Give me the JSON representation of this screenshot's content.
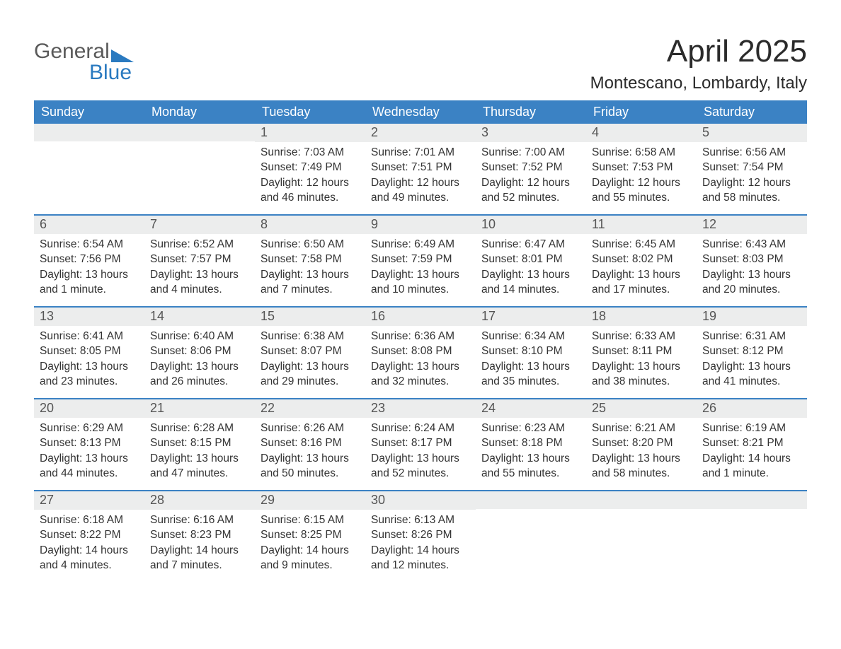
{
  "logo": {
    "line1": "General",
    "line2": "Blue"
  },
  "title": "April 2025",
  "location": "Montescano, Lombardy, Italy",
  "colors": {
    "header_bg": "#3b82c4",
    "header_text": "#ffffff",
    "daynum_bg": "#eceded",
    "row_divider": "#3b82c4",
    "logo_blue": "#2a7ac0",
    "body_text": "#333333"
  },
  "days_of_week": [
    "Sunday",
    "Monday",
    "Tuesday",
    "Wednesday",
    "Thursday",
    "Friday",
    "Saturday"
  ],
  "weeks": [
    [
      {
        "day": "",
        "sunrise": "",
        "sunset": "",
        "daylight": ""
      },
      {
        "day": "",
        "sunrise": "",
        "sunset": "",
        "daylight": ""
      },
      {
        "day": "1",
        "sunrise": "Sunrise: 7:03 AM",
        "sunset": "Sunset: 7:49 PM",
        "daylight": "Daylight: 12 hours and 46 minutes."
      },
      {
        "day": "2",
        "sunrise": "Sunrise: 7:01 AM",
        "sunset": "Sunset: 7:51 PM",
        "daylight": "Daylight: 12 hours and 49 minutes."
      },
      {
        "day": "3",
        "sunrise": "Sunrise: 7:00 AM",
        "sunset": "Sunset: 7:52 PM",
        "daylight": "Daylight: 12 hours and 52 minutes."
      },
      {
        "day": "4",
        "sunrise": "Sunrise: 6:58 AM",
        "sunset": "Sunset: 7:53 PM",
        "daylight": "Daylight: 12 hours and 55 minutes."
      },
      {
        "day": "5",
        "sunrise": "Sunrise: 6:56 AM",
        "sunset": "Sunset: 7:54 PM",
        "daylight": "Daylight: 12 hours and 58 minutes."
      }
    ],
    [
      {
        "day": "6",
        "sunrise": "Sunrise: 6:54 AM",
        "sunset": "Sunset: 7:56 PM",
        "daylight": "Daylight: 13 hours and 1 minute."
      },
      {
        "day": "7",
        "sunrise": "Sunrise: 6:52 AM",
        "sunset": "Sunset: 7:57 PM",
        "daylight": "Daylight: 13 hours and 4 minutes."
      },
      {
        "day": "8",
        "sunrise": "Sunrise: 6:50 AM",
        "sunset": "Sunset: 7:58 PM",
        "daylight": "Daylight: 13 hours and 7 minutes."
      },
      {
        "day": "9",
        "sunrise": "Sunrise: 6:49 AM",
        "sunset": "Sunset: 7:59 PM",
        "daylight": "Daylight: 13 hours and 10 minutes."
      },
      {
        "day": "10",
        "sunrise": "Sunrise: 6:47 AM",
        "sunset": "Sunset: 8:01 PM",
        "daylight": "Daylight: 13 hours and 14 minutes."
      },
      {
        "day": "11",
        "sunrise": "Sunrise: 6:45 AM",
        "sunset": "Sunset: 8:02 PM",
        "daylight": "Daylight: 13 hours and 17 minutes."
      },
      {
        "day": "12",
        "sunrise": "Sunrise: 6:43 AM",
        "sunset": "Sunset: 8:03 PM",
        "daylight": "Daylight: 13 hours and 20 minutes."
      }
    ],
    [
      {
        "day": "13",
        "sunrise": "Sunrise: 6:41 AM",
        "sunset": "Sunset: 8:05 PM",
        "daylight": "Daylight: 13 hours and 23 minutes."
      },
      {
        "day": "14",
        "sunrise": "Sunrise: 6:40 AM",
        "sunset": "Sunset: 8:06 PM",
        "daylight": "Daylight: 13 hours and 26 minutes."
      },
      {
        "day": "15",
        "sunrise": "Sunrise: 6:38 AM",
        "sunset": "Sunset: 8:07 PM",
        "daylight": "Daylight: 13 hours and 29 minutes."
      },
      {
        "day": "16",
        "sunrise": "Sunrise: 6:36 AM",
        "sunset": "Sunset: 8:08 PM",
        "daylight": "Daylight: 13 hours and 32 minutes."
      },
      {
        "day": "17",
        "sunrise": "Sunrise: 6:34 AM",
        "sunset": "Sunset: 8:10 PM",
        "daylight": "Daylight: 13 hours and 35 minutes."
      },
      {
        "day": "18",
        "sunrise": "Sunrise: 6:33 AM",
        "sunset": "Sunset: 8:11 PM",
        "daylight": "Daylight: 13 hours and 38 minutes."
      },
      {
        "day": "19",
        "sunrise": "Sunrise: 6:31 AM",
        "sunset": "Sunset: 8:12 PM",
        "daylight": "Daylight: 13 hours and 41 minutes."
      }
    ],
    [
      {
        "day": "20",
        "sunrise": "Sunrise: 6:29 AM",
        "sunset": "Sunset: 8:13 PM",
        "daylight": "Daylight: 13 hours and 44 minutes."
      },
      {
        "day": "21",
        "sunrise": "Sunrise: 6:28 AM",
        "sunset": "Sunset: 8:15 PM",
        "daylight": "Daylight: 13 hours and 47 minutes."
      },
      {
        "day": "22",
        "sunrise": "Sunrise: 6:26 AM",
        "sunset": "Sunset: 8:16 PM",
        "daylight": "Daylight: 13 hours and 50 minutes."
      },
      {
        "day": "23",
        "sunrise": "Sunrise: 6:24 AM",
        "sunset": "Sunset: 8:17 PM",
        "daylight": "Daylight: 13 hours and 52 minutes."
      },
      {
        "day": "24",
        "sunrise": "Sunrise: 6:23 AM",
        "sunset": "Sunset: 8:18 PM",
        "daylight": "Daylight: 13 hours and 55 minutes."
      },
      {
        "day": "25",
        "sunrise": "Sunrise: 6:21 AM",
        "sunset": "Sunset: 8:20 PM",
        "daylight": "Daylight: 13 hours and 58 minutes."
      },
      {
        "day": "26",
        "sunrise": "Sunrise: 6:19 AM",
        "sunset": "Sunset: 8:21 PM",
        "daylight": "Daylight: 14 hours and 1 minute."
      }
    ],
    [
      {
        "day": "27",
        "sunrise": "Sunrise: 6:18 AM",
        "sunset": "Sunset: 8:22 PM",
        "daylight": "Daylight: 14 hours and 4 minutes."
      },
      {
        "day": "28",
        "sunrise": "Sunrise: 6:16 AM",
        "sunset": "Sunset: 8:23 PM",
        "daylight": "Daylight: 14 hours and 7 minutes."
      },
      {
        "day": "29",
        "sunrise": "Sunrise: 6:15 AM",
        "sunset": "Sunset: 8:25 PM",
        "daylight": "Daylight: 14 hours and 9 minutes."
      },
      {
        "day": "30",
        "sunrise": "Sunrise: 6:13 AM",
        "sunset": "Sunset: 8:26 PM",
        "daylight": "Daylight: 14 hours and 12 minutes."
      },
      {
        "day": "",
        "sunrise": "",
        "sunset": "",
        "daylight": ""
      },
      {
        "day": "",
        "sunrise": "",
        "sunset": "",
        "daylight": ""
      },
      {
        "day": "",
        "sunrise": "",
        "sunset": "",
        "daylight": ""
      }
    ]
  ]
}
